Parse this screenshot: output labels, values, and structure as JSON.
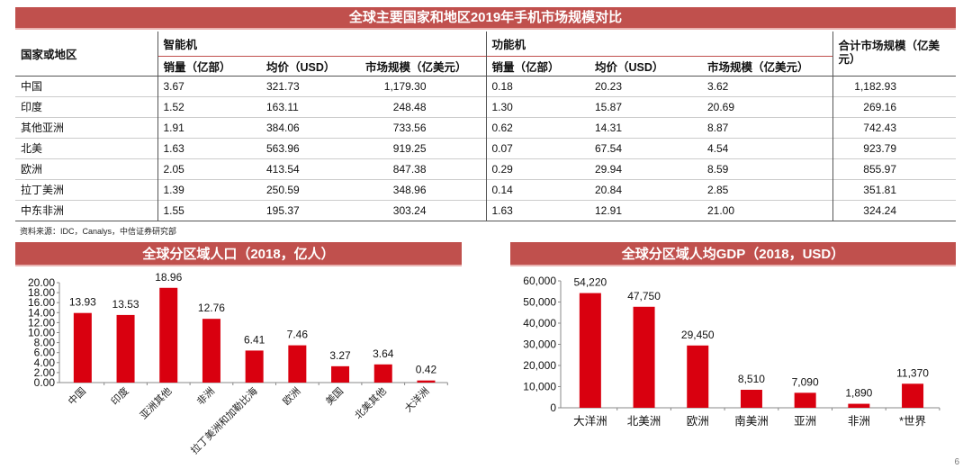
{
  "table": {
    "title": "全球主要国家和地区2019年手机市场规模对比",
    "col_region": "国家或地区",
    "group_smart": "智能机",
    "group_feature": "功能机",
    "col_total": "合计市场规模（亿美元）",
    "sub_cols": [
      "销量（亿部）",
      "均价（USD）",
      "市场规模（亿美元）",
      "销量（亿部）",
      "均价（USD）",
      "市场规模（亿美元）"
    ],
    "rows": [
      [
        "中国",
        "3.67",
        "321.73",
        "1,179.30",
        "0.18",
        "20.23",
        "3.62",
        "1,182.93"
      ],
      [
        "印度",
        "1.52",
        "163.11",
        "248.48",
        "1.30",
        "15.87",
        "20.69",
        "269.16"
      ],
      [
        "其他亚洲",
        "1.91",
        "384.06",
        "733.56",
        "0.62",
        "14.31",
        "8.87",
        "742.43"
      ],
      [
        "北美",
        "1.63",
        "563.96",
        "919.25",
        "0.07",
        "67.54",
        "4.54",
        "923.79"
      ],
      [
        "欧洲",
        "2.05",
        "413.54",
        "847.38",
        "0.29",
        "29.94",
        "8.59",
        "855.97"
      ],
      [
        "拉丁美洲",
        "1.39",
        "250.59",
        "348.96",
        "0.14",
        "20.84",
        "2.85",
        "351.81"
      ],
      [
        "中东非洲",
        "1.55",
        "195.37",
        "303.24",
        "1.63",
        "12.91",
        "21.00",
        "324.24"
      ]
    ],
    "source": "资料来源：IDC，Canalys，中信证券研究部"
  },
  "chart_data": [
    {
      "type": "bar",
      "title": "全球分区域人口（2018，亿人）",
      "categories": [
        "中国",
        "印度",
        "亚洲其他",
        "非洲",
        "拉丁美洲和加勒比海",
        "欧洲",
        "美国",
        "北美其他",
        "大洋洲"
      ],
      "values": [
        13.93,
        13.53,
        18.96,
        12.76,
        6.41,
        7.46,
        3.27,
        3.64,
        0.42
      ],
      "labels": [
        "13.93",
        "13.53",
        "18.96",
        "12.76",
        "6.41",
        "7.46",
        "3.27",
        "3.64",
        "0.42"
      ],
      "ylim": [
        0,
        20
      ],
      "yticks": [
        "0.00",
        "2.00",
        "4.00",
        "6.00",
        "8.00",
        "10.00",
        "12.00",
        "14.00",
        "16.00",
        "18.00",
        "20.00"
      ],
      "color": "#d9000f",
      "xlabel": "",
      "ylabel": ""
    },
    {
      "type": "bar",
      "title": "全球分区域人均GDP（2018，USD）",
      "categories": [
        "大洋洲",
        "北美洲",
        "欧洲",
        "南美洲",
        "亚洲",
        "非洲",
        "*世界"
      ],
      "values": [
        54220,
        47750,
        29450,
        8510,
        7090,
        1890,
        11370
      ],
      "labels": [
        "54,220",
        "47,750",
        "29,450",
        "8,510",
        "7,090",
        "1,890",
        "11,370"
      ],
      "ylim": [
        0,
        60000
      ],
      "yticks": [
        "0",
        "10,000",
        "20,000",
        "30,000",
        "40,000",
        "50,000",
        "60,000"
      ],
      "color": "#d9000f",
      "xlabel": "",
      "ylabel": ""
    }
  ],
  "page_number": "6"
}
